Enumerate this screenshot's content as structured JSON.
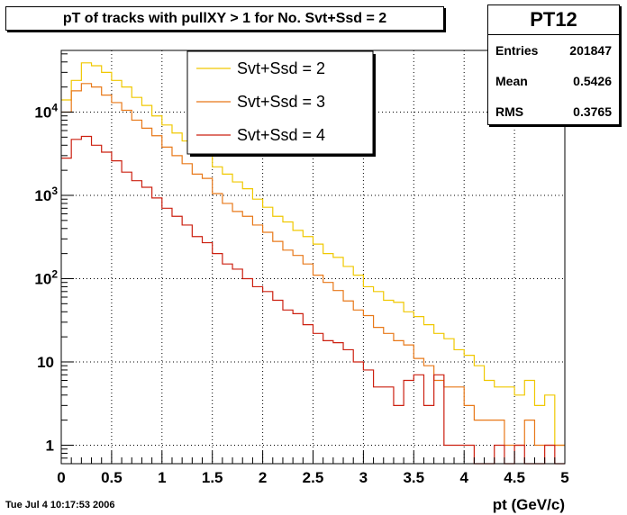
{
  "title": "pT of tracks with pullXY > 1 for No. Svt+Ssd = 2",
  "stats": {
    "name": "PT12",
    "rows": [
      {
        "label": "Entries",
        "value": "201847"
      },
      {
        "label": "Mean",
        "value": "0.5426"
      },
      {
        "label": "RMS",
        "value": "0.3765"
      }
    ]
  },
  "footer": {
    "timestamp": "Tue Jul  4 10:17:53 2006"
  },
  "chart_data": {
    "type": "line",
    "step": true,
    "xlabel": "pt (GeV/c)",
    "ylabel": "",
    "xlim": [
      0,
      5
    ],
    "ylim": [
      0.6,
      55000
    ],
    "ylog": true,
    "grid": true,
    "legend_position": "top-center",
    "x_ticks": [
      "0",
      "0.5",
      "1",
      "1.5",
      "2",
      "2.5",
      "3",
      "3.5",
      "4",
      "4.5",
      "5"
    ],
    "y_ticks": [
      {
        "value": 1,
        "base": "1",
        "exp": ""
      },
      {
        "value": 10,
        "base": "10",
        "exp": ""
      },
      {
        "value": 100,
        "base": "10",
        "exp": "2"
      },
      {
        "value": 1000,
        "base": "10",
        "exp": "3"
      },
      {
        "value": 10000,
        "base": "10",
        "exp": "4"
      }
    ],
    "bin_width": 0.1,
    "series": [
      {
        "name": "Svt+Ssd = 2",
        "color": "#f0c800",
        "values": [
          14000,
          24000,
          39000,
          36000,
          30000,
          24000,
          20000,
          15000,
          12000,
          9000,
          7000,
          5600,
          4500,
          3500,
          3000,
          2200,
          1800,
          1450,
          1200,
          900,
          720,
          560,
          480,
          380,
          320,
          260,
          200,
          180,
          140,
          110,
          80,
          70,
          55,
          52,
          40,
          35,
          28,
          22,
          19,
          14,
          12,
          9,
          6,
          5,
          5,
          4,
          6,
          3,
          4,
          1
        ]
      },
      {
        "name": "Svt+Ssd = 3",
        "color": "#e87818",
        "values": [
          10000,
          18000,
          22000,
          20000,
          16000,
          13000,
          10500,
          8000,
          6400,
          5200,
          3800,
          3000,
          2400,
          1800,
          1600,
          1050,
          800,
          640,
          560,
          440,
          360,
          280,
          220,
          190,
          150,
          110,
          90,
          72,
          54,
          42,
          36,
          26,
          22,
          18,
          16,
          11,
          9,
          6,
          5,
          5,
          3,
          2,
          2,
          2,
          1,
          1,
          2,
          1,
          1,
          1
        ]
      },
      {
        "name": "Svt+Ssd = 4",
        "color": "#cc2010",
        "values": [
          2800,
          4700,
          5100,
          4000,
          3300,
          2600,
          1900,
          1500,
          1250,
          930,
          700,
          560,
          440,
          320,
          270,
          200,
          150,
          130,
          100,
          80,
          70,
          55,
          42,
          38,
          28,
          22,
          18,
          17,
          14,
          10,
          8,
          5,
          5,
          3,
          6,
          7,
          3,
          7,
          1,
          1,
          1,
          0,
          0,
          1,
          0,
          1,
          0,
          0,
          1,
          0
        ]
      }
    ]
  }
}
